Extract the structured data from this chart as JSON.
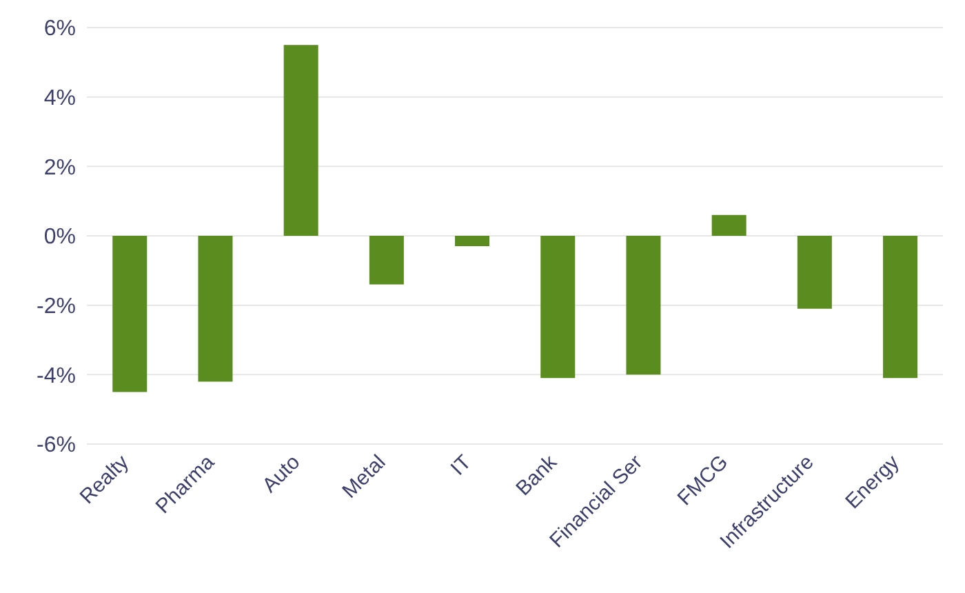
{
  "chart_data": {
    "type": "bar",
    "categories": [
      "Realty",
      "Pharma",
      "Auto",
      "Metal",
      "IT",
      "Bank",
      "Financial Ser",
      "FMCG",
      "Infrastructure",
      "Energy"
    ],
    "values": [
      -4.5,
      -4.2,
      5.5,
      -1.4,
      -0.3,
      -4.1,
      -4.0,
      0.6,
      -2.1,
      -4.1
    ],
    "color": "#5b8c1f",
    "ylim": [
      -6,
      6
    ],
    "yticks": [
      {
        "value": -6,
        "label": "-6%"
      },
      {
        "value": -4,
        "label": "-4%"
      },
      {
        "value": -2,
        "label": "-2%"
      },
      {
        "value": 0,
        "label": "0%"
      },
      {
        "value": 2,
        "label": "2%"
      },
      {
        "value": 4,
        "label": "4%"
      },
      {
        "value": 6,
        "label": "6%"
      }
    ],
    "grid": "y"
  }
}
